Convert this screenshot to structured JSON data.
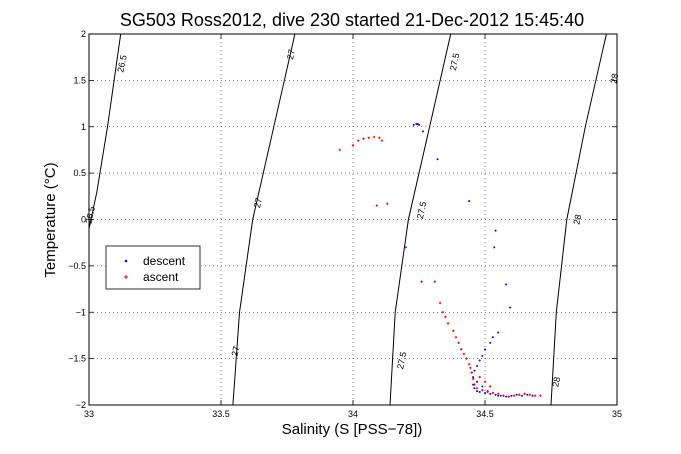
{
  "chart_data": {
    "type": "scatter",
    "title": "SG503 Ross2012, dive 230 started 21-Dec-2012 15:45:40",
    "xlabel": "Salinity (S [PSS−78])",
    "ylabel": "Temperature (°C)",
    "xlim": [
      33,
      35
    ],
    "ylim": [
      -2,
      2
    ],
    "grid": true,
    "legend_position": "center-left",
    "x_ticks": [
      33,
      33.5,
      34,
      34.5,
      35
    ],
    "x_tick_labels": [
      "33",
      "33.5",
      "34",
      "34.5",
      "35"
    ],
    "y_ticks": [
      -2,
      -1.5,
      -1,
      -0.5,
      0,
      0.5,
      1,
      1.5,
      2
    ],
    "y_tick_labels": [
      "−2",
      "−1.5",
      "−1",
      "−0.5",
      "0",
      "0.5",
      "1",
      "1.5",
      "2"
    ],
    "contours": [
      {
        "label": "26.5",
        "points": [
          [
            33.12,
            2
          ],
          [
            33.07,
            1
          ],
          [
            33.03,
            0.3
          ],
          [
            33.0,
            -0.1
          ]
        ],
        "labels_at": [
          [
            33.125,
            1.68
          ],
          [
            33.005,
            0.05
          ]
        ]
      },
      {
        "label": "27",
        "points": [
          [
            33.78,
            2
          ],
          [
            33.7,
            1.0
          ],
          [
            33.62,
            0.0
          ],
          [
            33.57,
            -1.0
          ],
          [
            33.545,
            -2.0
          ]
        ],
        "labels_at": [
          [
            33.765,
            1.78
          ],
          [
            33.64,
            0.18
          ],
          [
            33.555,
            -1.42
          ]
        ]
      },
      {
        "label": "27.5",
        "points": [
          [
            34.37,
            2
          ],
          [
            34.29,
            1.0
          ],
          [
            34.21,
            0.0
          ],
          [
            34.16,
            -1.0
          ],
          [
            34.14,
            -2.0
          ]
        ],
        "labels_at": [
          [
            34.385,
            1.7
          ],
          [
            34.26,
            0.1
          ],
          [
            34.185,
            -1.52
          ]
        ]
      },
      {
        "label": "28",
        "points": [
          [
            34.96,
            2
          ],
          [
            34.88,
            1.0
          ],
          [
            34.81,
            0.0
          ],
          [
            34.77,
            -1.0
          ],
          [
            34.75,
            -2.0
          ]
        ],
        "labels_at": [
          [
            34.99,
            1.52
          ],
          [
            34.85,
            0.0
          ],
          [
            34.77,
            -1.75
          ]
        ]
      }
    ],
    "series": [
      {
        "name": "descent",
        "color": "#0000ff",
        "marker": "dot",
        "points": [
          [
            34.23,
            1.02
          ],
          [
            34.24,
            1.03
          ],
          [
            34.245,
            1.03
          ],
          [
            34.25,
            1.02
          ],
          [
            34.265,
            0.95
          ],
          [
            34.32,
            0.65
          ],
          [
            34.44,
            0.2
          ],
          [
            34.54,
            -0.12
          ],
          [
            34.535,
            -0.3
          ],
          [
            34.58,
            -0.7
          ],
          [
            34.595,
            -0.95
          ],
          [
            34.55,
            -1.22
          ],
          [
            34.53,
            -1.27
          ],
          [
            34.52,
            -1.33
          ],
          [
            34.5,
            -1.4
          ],
          [
            34.49,
            -1.47
          ],
          [
            34.48,
            -1.52
          ],
          [
            34.47,
            -1.58
          ],
          [
            34.46,
            -1.63
          ],
          [
            34.455,
            -1.7
          ],
          [
            34.455,
            -1.78
          ],
          [
            34.46,
            -1.82
          ],
          [
            34.47,
            -1.85
          ],
          [
            34.48,
            -1.86
          ],
          [
            34.5,
            -1.87
          ],
          [
            34.52,
            -1.88
          ],
          [
            34.54,
            -1.89
          ],
          [
            34.56,
            -1.9
          ],
          [
            34.58,
            -1.91
          ],
          [
            34.6,
            -1.9
          ],
          [
            34.62,
            -1.89
          ],
          [
            34.64,
            -1.9
          ],
          [
            34.66,
            -1.89
          ],
          [
            34.68,
            -1.9
          ],
          [
            34.47,
            -1.75
          ],
          [
            34.49,
            -1.8
          ],
          [
            34.51,
            -1.85
          ],
          [
            34.53,
            -1.87
          ],
          [
            34.55,
            -1.9
          ]
        ]
      },
      {
        "name": "ascent",
        "color": "#ff0000",
        "marker": "plus",
        "points": [
          [
            33.95,
            0.75
          ],
          [
            34.0,
            0.8
          ],
          [
            34.02,
            0.85
          ],
          [
            34.04,
            0.87
          ],
          [
            34.06,
            0.88
          ],
          [
            34.08,
            0.89
          ],
          [
            34.1,
            0.88
          ],
          [
            34.11,
            0.85
          ],
          [
            34.09,
            0.15
          ],
          [
            34.13,
            0.17
          ],
          [
            34.2,
            -0.3
          ],
          [
            34.26,
            -0.67
          ],
          [
            34.31,
            -0.67
          ],
          [
            34.33,
            -0.9
          ],
          [
            34.34,
            -1.0
          ],
          [
            34.35,
            -1.05
          ],
          [
            34.36,
            -1.12
          ],
          [
            34.38,
            -1.2
          ],
          [
            34.39,
            -1.27
          ],
          [
            34.4,
            -1.33
          ],
          [
            34.41,
            -1.4
          ],
          [
            34.42,
            -1.45
          ],
          [
            34.43,
            -1.5
          ],
          [
            34.44,
            -1.56
          ],
          [
            34.445,
            -1.6
          ],
          [
            34.45,
            -1.65
          ],
          [
            34.455,
            -1.72
          ],
          [
            34.46,
            -1.78
          ],
          [
            34.47,
            -1.82
          ],
          [
            34.49,
            -1.84
          ],
          [
            34.51,
            -1.86
          ],
          [
            34.53,
            -1.87
          ],
          [
            34.55,
            -1.88
          ],
          [
            34.57,
            -1.9
          ],
          [
            34.59,
            -1.91
          ],
          [
            34.61,
            -1.9
          ],
          [
            34.63,
            -1.89
          ],
          [
            34.65,
            -1.88
          ],
          [
            34.67,
            -1.89
          ],
          [
            34.69,
            -1.9
          ],
          [
            34.71,
            -1.9
          ],
          [
            34.48,
            -1.7
          ],
          [
            34.5,
            -1.75
          ],
          [
            34.52,
            -1.8
          ]
        ]
      }
    ]
  }
}
